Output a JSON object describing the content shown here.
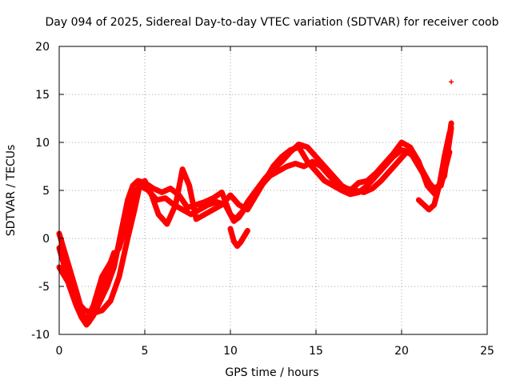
{
  "chart_data": {
    "type": "scatter",
    "title": "Day 094 of 2025, Sidereal Day-to-day VTEC variation (SDTVAR) for receiver coob",
    "xlabel": "GPS time / hours",
    "ylabel": "SDTVAR / TECUs",
    "xlim": [
      0,
      25
    ],
    "ylim": [
      -10,
      20
    ],
    "xticks": [
      "0",
      "5",
      "10",
      "15",
      "20",
      "25"
    ],
    "yticks": [
      "-10",
      "-5",
      "0",
      "5",
      "10",
      "15",
      "20"
    ],
    "grid": true,
    "marker": "+",
    "color": "#ff0000",
    "series": [
      {
        "name": "track-a",
        "x": [
          0.0,
          0.5,
          1.0,
          1.4,
          1.7,
          2.0,
          2.4,
          2.8,
          3.2,
          3.6,
          4.0,
          4.3,
          4.6,
          5.0,
          5.5,
          6.0,
          6.5,
          7.0,
          7.5,
          8.0,
          8.5,
          9.0,
          9.5,
          10.0,
          10.3,
          10.7,
          11.0,
          11.5,
          12.0,
          12.5,
          13.0,
          13.5,
          14.0,
          14.5,
          15.0,
          15.5,
          16.0,
          16.5,
          17.0,
          17.5,
          18.0,
          18.5,
          19.0,
          19.5,
          20.0,
          20.5,
          21.0,
          21.5,
          22.0,
          22.5,
          22.9
        ],
        "y": [
          0.5,
          -2.5,
          -5.5,
          -8.0,
          -8.8,
          -8.0,
          -6.5,
          -5.0,
          -3.0,
          0.5,
          4.0,
          5.5,
          6.0,
          5.8,
          5.2,
          4.8,
          5.2,
          4.5,
          3.2,
          3.5,
          3.8,
          4.2,
          4.8,
          2.5,
          2.0,
          2.8,
          3.8,
          5.0,
          6.2,
          7.2,
          8.0,
          9.0,
          9.8,
          9.5,
          8.5,
          7.5,
          6.5,
          5.5,
          5.0,
          5.8,
          6.0,
          6.8,
          7.8,
          8.8,
          10.0,
          9.5,
          8.0,
          5.5,
          4.5,
          7.0,
          12.0
        ]
      },
      {
        "name": "track-b",
        "x": [
          0.0,
          0.4,
          0.8,
          1.2,
          1.6,
          2.0,
          2.5,
          3.0,
          3.5,
          4.0,
          4.5,
          5.0,
          5.4,
          5.8,
          6.3,
          6.8,
          7.2,
          7.6,
          8.0,
          8.5,
          9.0,
          9.5,
          10.0,
          10.5,
          11.0,
          11.5,
          12.0,
          12.5,
          13.0,
          13.5,
          14.0,
          14.5,
          15.0,
          15.5,
          16.0,
          16.5,
          17.0,
          17.5,
          18.0,
          18.5,
          19.0,
          19.5,
          20.0,
          20.5,
          21.0,
          21.5,
          22.0,
          22.5,
          22.9
        ],
        "y": [
          -1.0,
          -3.5,
          -6.0,
          -7.5,
          -8.5,
          -7.0,
          -4.0,
          -2.5,
          -1.0,
          2.0,
          5.0,
          6.0,
          4.5,
          2.5,
          1.5,
          3.5,
          7.2,
          5.5,
          2.0,
          2.5,
          3.0,
          3.5,
          4.5,
          3.5,
          3.0,
          4.5,
          6.0,
          7.5,
          8.5,
          9.2,
          9.5,
          8.0,
          7.0,
          6.0,
          5.5,
          5.0,
          4.6,
          4.8,
          5.5,
          6.5,
          7.5,
          8.5,
          9.2,
          9.0,
          7.5,
          6.0,
          5.0,
          6.5,
          11.5
        ]
      },
      {
        "name": "track-c",
        "x": [
          0.0,
          0.5,
          1.0,
          1.5,
          2.0,
          2.5,
          3.0,
          3.5,
          4.0,
          4.4,
          4.7,
          5.2,
          5.7,
          6.2,
          6.7,
          7.2,
          7.7,
          8.2,
          8.7,
          9.2,
          9.7,
          10.2,
          10.5,
          10.8,
          11.3,
          11.8,
          12.3,
          12.8,
          13.3,
          13.8,
          14.3,
          14.8,
          15.3,
          15.8,
          16.3,
          16.8,
          17.3,
          17.8,
          18.3,
          18.8,
          19.3,
          19.8,
          20.3,
          20.8,
          21.3,
          21.8,
          22.3,
          22.8
        ],
        "y": [
          -3.0,
          -4.5,
          -6.5,
          -7.5,
          -7.8,
          -7.5,
          -6.5,
          -4.0,
          0.0,
          3.0,
          5.5,
          5.0,
          4.0,
          4.2,
          3.5,
          3.0,
          2.5,
          3.0,
          3.5,
          3.8,
          3.5,
          1.8,
          2.2,
          3.0,
          4.5,
          5.5,
          6.5,
          7.0,
          7.5,
          7.8,
          7.5,
          8.0,
          7.5,
          6.5,
          5.5,
          5.2,
          5.0,
          4.8,
          5.2,
          6.0,
          7.0,
          8.0,
          9.0,
          8.5,
          6.8,
          5.2,
          5.5,
          9.0
        ]
      },
      {
        "name": "track-d",
        "x": [
          0.2,
          0.6,
          1.0,
          1.3,
          1.6,
          2.0,
          2.4,
          2.8,
          3.2
        ],
        "y": [
          -2.0,
          -5.0,
          -7.0,
          -8.2,
          -9.0,
          -8.0,
          -5.5,
          -3.5,
          -1.5
        ]
      },
      {
        "name": "track-e",
        "x": [
          10.0,
          10.2,
          10.4,
          10.6,
          10.8,
          11.0
        ],
        "y": [
          1.0,
          -0.3,
          -0.8,
          -0.4,
          0.2,
          0.8
        ]
      },
      {
        "name": "track-f",
        "x": [
          21.0,
          21.3,
          21.6,
          21.9,
          22.2,
          22.5,
          22.8
        ],
        "y": [
          4.0,
          3.5,
          3.0,
          3.5,
          5.5,
          8.5,
          11.0
        ]
      },
      {
        "name": "outlier",
        "x": [
          22.9
        ],
        "y": [
          16.3
        ]
      }
    ]
  }
}
